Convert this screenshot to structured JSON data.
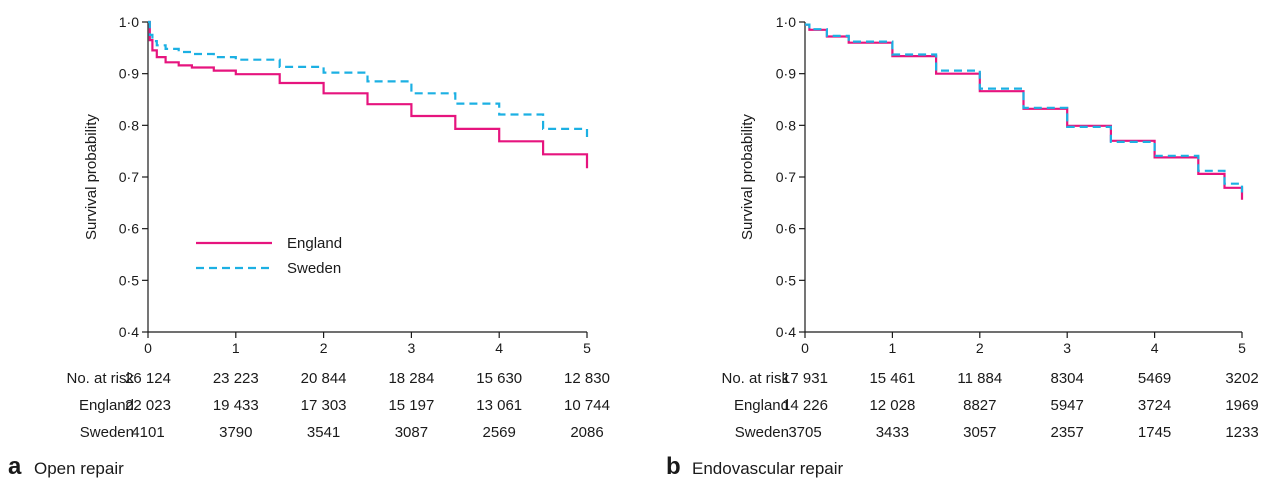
{
  "colors": {
    "England": "#e6147e",
    "Sweden": "#1cb0e3",
    "axis": "#1a1a1a"
  },
  "risk_table_label": "No. at risk",
  "chart_data": [
    {
      "type": "line",
      "panel_letter": "a",
      "panel_title": "Open repair",
      "ylabel": "Survival probability",
      "xlim": [
        0,
        5
      ],
      "ylim": [
        0.4,
        1.0
      ],
      "x_ticks": [
        0,
        1,
        2,
        3,
        4,
        5
      ],
      "y_ticks": [
        "0·4",
        "0·5",
        "0·6",
        "0·7",
        "0·8",
        "0·9",
        "1·0"
      ],
      "legend": {
        "placement": "lower-left",
        "entries": [
          "England",
          "Sweden"
        ]
      },
      "series": [
        {
          "name": "England",
          "style": "solid",
          "x": [
            0,
            0.02,
            0.05,
            0.1,
            0.2,
            0.35,
            0.5,
            0.75,
            1,
            1.5,
            2,
            2.5,
            3,
            3.5,
            4,
            4.5,
            5
          ],
          "y": [
            1.0,
            0.965,
            0.945,
            0.932,
            0.922,
            0.916,
            0.912,
            0.906,
            0.899,
            0.882,
            0.862,
            0.841,
            0.818,
            0.793,
            0.769,
            0.744,
            0.717
          ]
        },
        {
          "name": "Sweden",
          "style": "dashed",
          "x": [
            0,
            0.02,
            0.05,
            0.1,
            0.2,
            0.35,
            0.5,
            0.75,
            1,
            1.5,
            2,
            2.5,
            3,
            3.5,
            4,
            4.5,
            5
          ],
          "y": [
            1.0,
            0.975,
            0.963,
            0.955,
            0.948,
            0.942,
            0.938,
            0.932,
            0.927,
            0.913,
            0.902,
            0.885,
            0.862,
            0.842,
            0.821,
            0.793,
            0.771
          ]
        }
      ],
      "risk_rows": [
        {
          "label": "No. at risk",
          "values": [
            "26 124",
            "23 223",
            "20 844",
            "18 284",
            "15 630",
            "12 830"
          ]
        },
        {
          "label": "England",
          "values": [
            "22 023",
            "19 433",
            "17 303",
            "15 197",
            "13 061",
            "10 744"
          ]
        },
        {
          "label": "Sweden",
          "values": [
            "4101",
            "3790",
            "3541",
            "3087",
            "2569",
            "2086"
          ]
        }
      ]
    },
    {
      "type": "line",
      "panel_letter": "b",
      "panel_title": "Endovascular repair",
      "ylabel": "Survival probability",
      "xlim": [
        0,
        5
      ],
      "ylim": [
        0.4,
        1.0
      ],
      "x_ticks": [
        0,
        1,
        2,
        3,
        4,
        5
      ],
      "y_ticks": [
        "0·4",
        "0·5",
        "0·6",
        "0·7",
        "0·8",
        "0·9",
        "1·0"
      ],
      "series": [
        {
          "name": "England",
          "style": "solid",
          "x": [
            0,
            0.05,
            0.25,
            0.5,
            1,
            1.5,
            2,
            2.5,
            3,
            3.5,
            4,
            4.5,
            4.8,
            5
          ],
          "y": [
            0.995,
            0.985,
            0.972,
            0.96,
            0.934,
            0.9,
            0.866,
            0.832,
            0.799,
            0.77,
            0.738,
            0.706,
            0.679,
            0.656
          ]
        },
        {
          "name": "Sweden",
          "style": "dashed",
          "x": [
            0,
            0.05,
            0.25,
            0.5,
            1,
            1.5,
            2,
            2.5,
            3,
            3.5,
            4,
            4.5,
            4.8,
            5
          ],
          "y": [
            0.995,
            0.986,
            0.973,
            0.962,
            0.937,
            0.906,
            0.871,
            0.834,
            0.797,
            0.768,
            0.741,
            0.712,
            0.687,
            0.67
          ]
        }
      ],
      "risk_rows": [
        {
          "label": "No. at risk",
          "values": [
            "17 931",
            "15 461",
            "11 884",
            "8304",
            "5469",
            "3202"
          ]
        },
        {
          "label": "England",
          "values": [
            "14 226",
            "12 028",
            "8827",
            "5947",
            "3724",
            "1969"
          ]
        },
        {
          "label": "Sweden",
          "values": [
            "3705",
            "3433",
            "3057",
            "2357",
            "1745",
            "1233"
          ]
        }
      ]
    }
  ]
}
